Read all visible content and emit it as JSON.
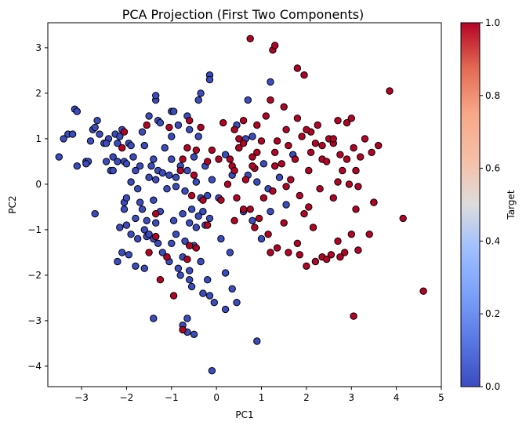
{
  "chart_data": {
    "type": "scatter",
    "title": "PCA Projection (First Two Components)",
    "xlabel": "PC1",
    "ylabel": "PC2",
    "xlim": [
      -3.75,
      5.0
    ],
    "ylim": [
      -4.45,
      3.55
    ],
    "xticks": [
      -3,
      -2,
      -1,
      0,
      1,
      2,
      3,
      4,
      5
    ],
    "yticks": [
      -4,
      -3,
      -2,
      -1,
      0,
      1,
      2,
      3
    ],
    "grid": false,
    "colorbar": {
      "label": "Target",
      "range": [
        0.0,
        1.0
      ],
      "ticks": [
        "0.0",
        "0.2",
        "0.4",
        "0.6",
        "0.8",
        "1.0"
      ],
      "colormap": "coolwarm",
      "low_color": "#3b4cc0",
      "high_color": "#b40426"
    },
    "series": [
      {
        "target": 0,
        "color": "#3b4cc0",
        "points": [
          [
            -3.5,
            0.6
          ],
          [
            -3.4,
            1.0
          ],
          [
            -3.3,
            1.1
          ],
          [
            -3.2,
            1.1
          ],
          [
            -3.15,
            1.65
          ],
          [
            -3.1,
            1.6
          ],
          [
            -3.1,
            0.4
          ],
          [
            -2.9,
            0.5
          ],
          [
            -2.85,
            0.5
          ],
          [
            -2.8,
            0.95
          ],
          [
            -2.75,
            1.2
          ],
          [
            -2.7,
            1.25
          ],
          [
            -2.65,
            1.4
          ],
          [
            -2.6,
            1.1
          ],
          [
            -2.5,
            0.9
          ],
          [
            -2.45,
            0.5
          ],
          [
            -2.4,
            1.0
          ],
          [
            -2.35,
            0.3
          ],
          [
            -2.3,
            0.3
          ],
          [
            -2.3,
            0.6
          ],
          [
            -2.25,
            1.1
          ],
          [
            -2.2,
            0.9
          ],
          [
            -2.2,
            0.5
          ],
          [
            -2.15,
            1.05
          ],
          [
            -2.1,
            1.2
          ],
          [
            -2.05,
            0.5
          ],
          [
            -2.05,
            -0.4
          ],
          [
            -2.0,
            -0.3
          ],
          [
            -2.0,
            0.45
          ],
          [
            -1.95,
            0.9
          ],
          [
            -1.9,
            0.85
          ],
          [
            -1.9,
            0.05
          ],
          [
            -1.85,
            0.6
          ],
          [
            -1.8,
            0.3
          ],
          [
            -1.75,
            -0.1
          ],
          [
            -1.7,
            -0.4
          ],
          [
            -1.7,
            0.4
          ],
          [
            -1.65,
            -0.55
          ],
          [
            -1.6,
            0.85
          ],
          [
            -1.55,
            -0.8
          ],
          [
            -1.5,
            0.15
          ],
          [
            -1.45,
            0.4
          ],
          [
            -1.4,
            0.55
          ],
          [
            -1.4,
            -0.35
          ],
          [
            -1.35,
            0.1
          ],
          [
            -1.3,
            0.3
          ],
          [
            -1.25,
            -0.6
          ],
          [
            -1.2,
            0.25
          ],
          [
            -1.15,
            0.8
          ],
          [
            -1.1,
            -0.1
          ],
          [
            -1.05,
            0.2
          ],
          [
            -1.0,
            0.55
          ],
          [
            -0.95,
            -0.8
          ],
          [
            -0.9,
            0.15
          ],
          [
            -0.85,
            1.3
          ],
          [
            -0.8,
            0.4
          ],
          [
            -0.75,
            -0.65
          ],
          [
            -0.7,
            -0.15
          ],
          [
            -0.65,
            0.3
          ],
          [
            -0.6,
            -0.85
          ],
          [
            -0.55,
            -0.55
          ],
          [
            -0.5,
            0.6
          ],
          [
            -0.45,
            0.05
          ],
          [
            -0.4,
            -0.7
          ],
          [
            -0.35,
            -0.3
          ],
          [
            -0.3,
            -0.6
          ],
          [
            -0.25,
            -0.9
          ],
          [
            -0.2,
            -0.25
          ],
          [
            -0.15,
            -0.75
          ],
          [
            -0.1,
            0.1
          ],
          [
            -2.0,
            -0.9
          ],
          [
            -1.9,
            -1.1
          ],
          [
            -1.8,
            -0.75
          ],
          [
            -1.75,
            -1.2
          ],
          [
            -1.6,
            -1.0
          ],
          [
            -1.55,
            -1.15
          ],
          [
            -1.5,
            -1.1
          ],
          [
            -1.4,
            -1.2
          ],
          [
            -1.35,
            -0.85
          ],
          [
            -1.3,
            -1.3
          ],
          [
            -1.2,
            -1.5
          ],
          [
            -1.1,
            -1.6
          ],
          [
            -1.05,
            -1.7
          ],
          [
            -1.0,
            -1.3
          ],
          [
            -0.9,
            -1.1
          ],
          [
            -0.85,
            -1.85
          ],
          [
            -0.8,
            -2.0
          ],
          [
            -0.75,
            -1.6
          ],
          [
            -0.7,
            -1.25
          ],
          [
            -0.6,
            -1.9
          ],
          [
            -0.55,
            -2.25
          ],
          [
            -0.5,
            -1.35
          ],
          [
            -0.45,
            -0.95
          ],
          [
            -0.35,
            -1.7
          ],
          [
            -0.3,
            -2.4
          ],
          [
            -0.2,
            -2.1
          ],
          [
            -0.15,
            -2.45
          ],
          [
            0.1,
            -1.2
          ],
          [
            0.2,
            -1.95
          ],
          [
            0.3,
            -1.5
          ],
          [
            -2.2,
            -1.7
          ],
          [
            -2.1,
            -1.5
          ],
          [
            -1.95,
            -1.55
          ],
          [
            -1.8,
            -1.8
          ],
          [
            -1.6,
            -1.85
          ],
          [
            -0.75,
            -3.1
          ],
          [
            -0.5,
            -3.3
          ],
          [
            -0.05,
            -2.6
          ],
          [
            0.35,
            -2.3
          ],
          [
            0.45,
            -2.6
          ],
          [
            -1.4,
            -2.95
          ],
          [
            -0.65,
            -2.95
          ],
          [
            0.9,
            -3.45
          ],
          [
            -0.65,
            -3.25
          ],
          [
            0.2,
            -2.75
          ],
          [
            -0.1,
            -4.1
          ],
          [
            -0.6,
            -2.1
          ],
          [
            -2.05,
            -0.55
          ],
          [
            -2.15,
            -0.95
          ],
          [
            -2.7,
            -0.65
          ],
          [
            -1.5,
            1.5
          ],
          [
            -1.35,
            1.85
          ],
          [
            -1.3,
            1.4
          ],
          [
            -1.25,
            1.35
          ],
          [
            -1.0,
            1.6
          ],
          [
            -0.65,
            1.5
          ],
          [
            -0.6,
            1.2
          ],
          [
            -0.4,
            1.05
          ],
          [
            -0.4,
            1.85
          ],
          [
            -0.35,
            2.0
          ],
          [
            -0.15,
            2.4
          ],
          [
            -0.15,
            2.3
          ],
          [
            -1.35,
            1.95
          ],
          [
            -0.95,
            1.6
          ],
          [
            -1.65,
            1.15
          ],
          [
            -2.45,
            0.9
          ],
          [
            -2.9,
            0.45
          ],
          [
            1.2,
            -0.6
          ],
          [
            -0.9,
            -0.05
          ],
          [
            0.05,
            -0.3
          ],
          [
            -1.0,
            1.05
          ],
          [
            -0.25,
            0.4
          ],
          [
            0.35,
            0.2
          ],
          [
            0.5,
            0.8
          ],
          [
            0.7,
            0.2
          ],
          [
            0.8,
            1.05
          ],
          [
            0.9,
            0.05
          ],
          [
            0.6,
            -0.6
          ],
          [
            0.8,
            -0.8
          ],
          [
            1.0,
            -1.2
          ],
          [
            1.15,
            -0.1
          ],
          [
            1.4,
            0.15
          ],
          [
            1.55,
            -0.45
          ],
          [
            1.7,
            0.65
          ],
          [
            0.65,
            1.0
          ],
          [
            0.45,
            1.3
          ],
          [
            0.7,
            1.85
          ],
          [
            1.2,
            2.25
          ],
          [
            1.05,
            0.45
          ],
          [
            0.2,
            0.65
          ]
        ]
      },
      {
        "target": 1,
        "color": "#b40426",
        "points": [
          [
            0.75,
            3.2
          ],
          [
            1.25,
            2.95
          ],
          [
            1.3,
            3.05
          ],
          [
            1.8,
            2.55
          ],
          [
            1.95,
            2.4
          ],
          [
            3.85,
            2.05
          ],
          [
            1.2,
            1.85
          ],
          [
            1.5,
            1.7
          ],
          [
            1.8,
            1.45
          ],
          [
            2.1,
            1.15
          ],
          [
            2.25,
            1.3
          ],
          [
            2.5,
            1.0
          ],
          [
            2.7,
            1.4
          ],
          [
            2.9,
            1.35
          ],
          [
            3.0,
            1.45
          ],
          [
            0.6,
            1.4
          ],
          [
            0.9,
            1.3
          ],
          [
            0.15,
            1.35
          ],
          [
            -0.6,
            1.4
          ],
          [
            -0.35,
            1.25
          ],
          [
            0.4,
            1.2
          ],
          [
            0.5,
            0.8
          ],
          [
            0.6,
            0.9
          ],
          [
            0.8,
            0.6
          ],
          [
            1.0,
            0.95
          ],
          [
            1.3,
            0.7
          ],
          [
            1.6,
            0.85
          ],
          [
            1.9,
            1.05
          ],
          [
            2.0,
            1.2
          ],
          [
            2.2,
            0.9
          ],
          [
            2.35,
            0.55
          ],
          [
            2.6,
            0.9
          ],
          [
            2.75,
            0.65
          ],
          [
            2.9,
            0.55
          ],
          [
            3.1,
            0.3
          ],
          [
            3.2,
            0.6
          ],
          [
            3.6,
            0.85
          ],
          [
            2.7,
            0.05
          ],
          [
            2.8,
            0.3
          ],
          [
            2.95,
            0.0
          ],
          [
            3.15,
            -0.05
          ],
          [
            0.35,
            0.4
          ],
          [
            0.05,
            0.55
          ],
          [
            -0.1,
            0.75
          ],
          [
            -0.2,
            0.5
          ],
          [
            -0.45,
            0.75
          ],
          [
            -0.65,
            0.8
          ],
          [
            -0.8,
            0.3
          ],
          [
            -1.05,
            1.25
          ],
          [
            -1.55,
            1.3
          ],
          [
            -2.05,
            1.15
          ],
          [
            -2.1,
            0.8
          ],
          [
            0.25,
            0.0
          ],
          [
            0.45,
            -0.3
          ],
          [
            0.65,
            0.1
          ],
          [
            0.85,
            0.35
          ],
          [
            1.05,
            -0.3
          ],
          [
            1.25,
            -0.15
          ],
          [
            1.45,
            0.45
          ],
          [
            1.65,
            0.1
          ],
          [
            1.85,
            -0.25
          ],
          [
            2.05,
            -0.5
          ],
          [
            2.3,
            -0.1
          ],
          [
            2.6,
            -0.3
          ],
          [
            3.1,
            -0.55
          ],
          [
            3.5,
            -0.4
          ],
          [
            4.15,
            -0.75
          ],
          [
            0.1,
            -0.35
          ],
          [
            -0.3,
            -0.35
          ],
          [
            -0.55,
            -0.25
          ],
          [
            -1.35,
            -0.65
          ],
          [
            -1.35,
            -1.15
          ],
          [
            -0.6,
            -1.35
          ],
          [
            -0.45,
            -1.4
          ],
          [
            -0.2,
            -0.9
          ],
          [
            0.4,
            -0.8
          ],
          [
            0.6,
            -0.55
          ],
          [
            0.85,
            -0.95
          ],
          [
            1.15,
            -1.1
          ],
          [
            1.35,
            -1.4
          ],
          [
            1.5,
            -0.85
          ],
          [
            1.8,
            -1.3
          ],
          [
            1.95,
            -0.65
          ],
          [
            2.15,
            -0.95
          ],
          [
            2.35,
            -1.6
          ],
          [
            2.55,
            -1.55
          ],
          [
            2.7,
            -1.25
          ],
          [
            2.85,
            -1.5
          ],
          [
            3.15,
            -1.45
          ],
          [
            3.4,
            -1.1
          ],
          [
            3.5,
            -0.4
          ],
          [
            1.85,
            -1.55
          ],
          [
            2.0,
            -1.8
          ],
          [
            2.2,
            -1.7
          ],
          [
            2.45,
            -1.65
          ],
          [
            2.75,
            -1.6
          ],
          [
            -1.5,
            -1.5
          ],
          [
            -1.1,
            -1.6
          ],
          [
            -0.65,
            -1.65
          ],
          [
            -0.95,
            -2.45
          ],
          [
            -1.25,
            -2.1
          ],
          [
            -0.75,
            -3.2
          ],
          [
            1.2,
            -1.5
          ],
          [
            1.6,
            -1.5
          ],
          [
            0.5,
            1.0
          ],
          [
            0.9,
            0.7
          ],
          [
            1.1,
            1.5
          ],
          [
            1.35,
            0.95
          ],
          [
            1.55,
            1.2
          ],
          [
            1.75,
            0.55
          ],
          [
            2.05,
            0.3
          ],
          [
            2.35,
            0.85
          ],
          [
            2.6,
            1.0
          ],
          [
            3.3,
            1.0
          ],
          [
            3.45,
            0.7
          ],
          [
            3.0,
            -1.1
          ],
          [
            4.6,
            -2.35
          ],
          [
            3.05,
            -2.9
          ],
          [
            0.75,
            -0.55
          ],
          [
            0.95,
            -0.75
          ],
          [
            0.3,
            0.55
          ],
          [
            0.4,
            0.3
          ],
          [
            -0.5,
            0.2
          ],
          [
            -0.75,
            0.55
          ],
          [
            0.8,
            0.4
          ],
          [
            1.3,
            0.4
          ],
          [
            2.45,
            0.5
          ],
          [
            3.05,
            0.8
          ],
          [
            2.1,
            0.7
          ],
          [
            1.55,
            -0.05
          ]
        ]
      }
    ]
  }
}
